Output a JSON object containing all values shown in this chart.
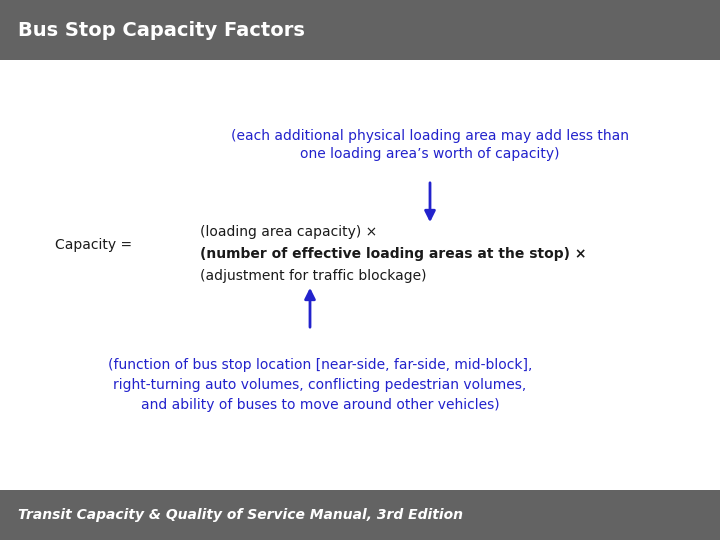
{
  "title": "Bus Stop Capacity Factors",
  "title_color": "#ffffff",
  "title_bg_color": "#636363",
  "footer_text": "Transit Capacity & Quality of Service Manual, 3rd Edition",
  "footer_bg_color": "#636363",
  "footer_text_color": "#ffffff",
  "bg_color": "#ffffff",
  "blue_color": "#2222CC",
  "black_color": "#1a1a1a",
  "top_annotation_line1": "(each additional physical loading area may add less than",
  "top_annotation_line2": "one loading area’s worth of capacity)",
  "capacity_label": "Capacity =",
  "capacity_line1": "(loading area capacity) ×",
  "capacity_line2": "(number of effective loading areas at the stop) ×",
  "capacity_line3": "(adjustment for traffic blockage)",
  "bottom_annotation_line1": "(function of bus stop location [near-side, far-side, mid-block],",
  "bottom_annotation_line2": "right-turning auto volumes, conflicting pedestrian volumes,",
  "bottom_annotation_line3": "and ability of buses to move around other vehicles)"
}
